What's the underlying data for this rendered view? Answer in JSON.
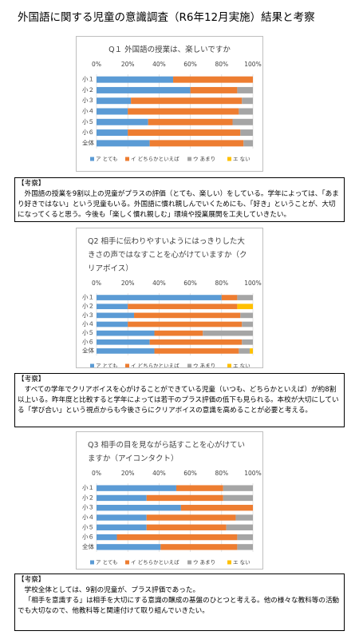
{
  "title": "外国語に関する児童の意識調査（R6年12月実施）結果と考察",
  "chart_data": [
    {
      "type": "stacked-bar-horizontal",
      "title": "Q１ 外国語の授業は、楽しいですか",
      "categories": [
        "小１",
        "小２",
        "小３",
        "小４",
        "小５",
        "小６",
        "全体"
      ],
      "series": [
        {
          "name": "ア とても",
          "color": "#5b9bd5",
          "values": [
            49,
            60,
            22,
            20,
            33,
            20,
            34
          ]
        },
        {
          "name": "イ どちらかといえば",
          "color": "#ed7d31",
          "values": [
            51,
            30,
            71,
            71,
            54,
            72,
            60
          ]
        },
        {
          "name": "ウ あまり",
          "color": "#a5a5a5",
          "values": [
            0,
            10,
            7,
            9,
            13,
            8,
            6
          ]
        },
        {
          "name": "エ ない",
          "color": "#ffc000",
          "values": [
            0,
            0,
            0,
            0,
            0,
            0,
            0
          ]
        }
      ],
      "xlim": [
        0,
        100
      ],
      "xticks": [
        {
          "value": 0,
          "label": "0%"
        },
        {
          "value": 20,
          "label": "20%"
        },
        {
          "value": 40,
          "label": "40%"
        },
        {
          "value": 60,
          "label": "60%"
        },
        {
          "value": 80,
          "label": "80%"
        },
        {
          "value": 100,
          "label": "100%"
        }
      ],
      "grid": true,
      "legend": "bottom"
    },
    {
      "type": "stacked-bar-horizontal",
      "title": "Q2 相手に伝わりやすいようにはっきりした大きさの声ではなすことを心がけていますか（クリアボイス）",
      "categories": [
        "小１",
        "小２",
        "小３",
        "小４",
        "小５",
        "小６",
        "全体"
      ],
      "series": [
        {
          "name": "ア とても",
          "color": "#5b9bd5",
          "values": [
            80,
            20,
            24,
            20,
            37,
            34,
            37
          ]
        },
        {
          "name": "イ どちらかといえば",
          "color": "#ed7d31",
          "values": [
            10,
            70,
            68,
            73,
            31,
            59,
            54
          ]
        },
        {
          "name": "ウ あまり",
          "color": "#a5a5a5",
          "values": [
            10,
            0,
            8,
            7,
            32,
            7,
            7
          ]
        },
        {
          "name": "エ ない",
          "color": "#ffc000",
          "values": [
            0,
            10,
            0,
            0,
            0,
            0,
            2
          ]
        }
      ],
      "xlim": [
        0,
        100
      ],
      "xticks": [
        {
          "value": 0,
          "label": "0%"
        },
        {
          "value": 20,
          "label": "20%"
        },
        {
          "value": 40,
          "label": "40%"
        },
        {
          "value": 60,
          "label": "60%"
        },
        {
          "value": 80,
          "label": "80%"
        },
        {
          "value": 100,
          "label": "100%"
        }
      ],
      "grid": true,
      "legend": "bottom"
    },
    {
      "type": "stacked-bar-horizontal",
      "title": "Q3 相手の目を見ながら話すことを心がけていますか（アイコンタクト）",
      "categories": [
        "小１",
        "小２",
        "小３",
        "小４",
        "小５",
        "小６",
        "全体"
      ],
      "series": [
        {
          "name": "ア とても",
          "color": "#5b9bd5",
          "values": [
            51,
            32,
            54,
            32,
            32,
            13,
            41
          ]
        },
        {
          "name": "イ どちらかといえば",
          "color": "#ed7d31",
          "values": [
            30,
            49,
            46,
            57,
            51,
            77,
            49
          ]
        },
        {
          "name": "ウ あまり",
          "color": "#a5a5a5",
          "values": [
            19,
            19,
            0,
            11,
            17,
            10,
            10
          ]
        },
        {
          "name": "エ ない",
          "color": "#ffc000",
          "values": [
            0,
            0,
            0,
            0,
            0,
            0,
            0
          ]
        }
      ],
      "xlim": [
        0,
        100
      ],
      "xticks": [
        {
          "value": 0,
          "label": "0%"
        },
        {
          "value": 20,
          "label": "20%"
        },
        {
          "value": 40,
          "label": "40%"
        },
        {
          "value": 60,
          "label": "60%"
        },
        {
          "value": 80,
          "label": "80%"
        },
        {
          "value": 100,
          "label": "100%"
        }
      ],
      "grid": true,
      "legend": "bottom"
    }
  ],
  "notes": [
    {
      "heading": "【考察】",
      "paragraphs": [
        "外国語の授業を9割以上の児童がプラスの評価（とても、楽しい）をしている。学年によっては、「あまり好きではない」という児童もいる。外国語に慣れ親しんでいくためにも、「好き」ということが、大切になってくると思う。今後も「楽しく慣れ親しむ」環境や授業展開を工夫していきたい。"
      ]
    },
    {
      "heading": "【考察】",
      "paragraphs": [
        "すべての学年でクリアボイスを心がけることができている児童（いつも、どちらかといえば）が約8割以上いる。昨年度と比較すると学年によっては若干のプラス評価の低下も見られる。本校が大切にしている「学び合い」という視点からも今後さらにクリアボイスの意識を高めることが必要と考える。"
      ]
    },
    {
      "heading": "【考察】",
      "paragraphs": [
        "学校全体としては、9割の児童が、プラス評価であった。",
        "「相手を意識する」は相手を大切にする意識の醸成の基盤のひとつと考える。他の様々な教科等の活動でも大切なので、他教科等と関連付けて取り組んでいきたい。"
      ]
    }
  ]
}
